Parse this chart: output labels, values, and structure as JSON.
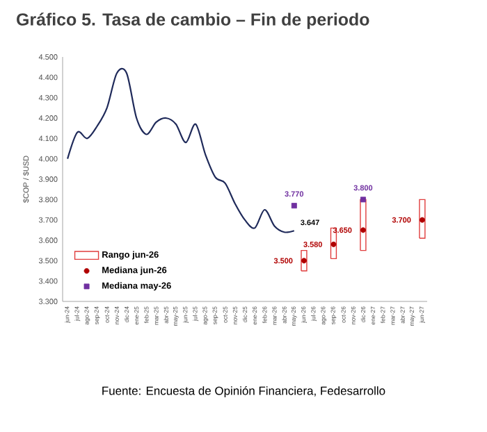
{
  "chart_data": {
    "type": "line",
    "title": "Gráfico 5. Tasa de cambio – Fin de periodo",
    "ylabel": "$COP / $USD",
    "categories": [
      "jun-24",
      "jul-24",
      "ago-24",
      "sep-24",
      "oct-24",
      "nov-24",
      "dic-24",
      "ene-25",
      "feb-25",
      "mar-25",
      "abr-25",
      "may-25",
      "jun-25",
      "jul-25",
      "ago-25",
      "sep-25",
      "oct-25",
      "nov-25",
      "dic-25",
      "ene-26",
      "feb-26",
      "mar-26",
      "abr-26",
      "may-26",
      "jun-26",
      "jul-26",
      "ago-26",
      "sep-26",
      "oct-26",
      "nov-26",
      "dic-26",
      "ene-27",
      "feb-27",
      "mar-27",
      "abr-27",
      "may-27",
      "jun-27"
    ],
    "ylim": [
      3300,
      4500
    ],
    "yticks": [
      {
        "value": 3300,
        "label": "3.300"
      },
      {
        "value": 3400,
        "label": "3.400"
      },
      {
        "value": 3500,
        "label": "3.500"
      },
      {
        "value": 3600,
        "label": "3.600"
      },
      {
        "value": 3700,
        "label": "3.700"
      },
      {
        "value": 3800,
        "label": "3.800"
      },
      {
        "value": 3900,
        "label": "3.900"
      },
      {
        "value": 4000,
        "label": "4.000"
      },
      {
        "value": 4100,
        "label": "4.100"
      },
      {
        "value": 4200,
        "label": "4.200"
      },
      {
        "value": 4300,
        "label": "4.300"
      },
      {
        "value": 4400,
        "label": "4.400"
      },
      {
        "value": 4500,
        "label": "4.500"
      }
    ],
    "grid": false,
    "legend": "bottom left",
    "series": [
      {
        "color": "#1f2a5a",
        "values": [
          4000,
          4130,
          4100,
          4160,
          4250,
          4420,
          4420,
          4200,
          4120,
          4180,
          4200,
          4170,
          4080,
          4170,
          4020,
          3910,
          3880,
          3780,
          3700,
          3660,
          3750,
          3670,
          3640,
          3647,
          null,
          null,
          null,
          null,
          null,
          null,
          null,
          null,
          null,
          null,
          null,
          null,
          null
        ],
        "value_labels": [
          null,
          null,
          null,
          null,
          null,
          null,
          null,
          null,
          null,
          null,
          null,
          null,
          null,
          null,
          null,
          null,
          null,
          null,
          null,
          null,
          null,
          null,
          null,
          "3.647",
          null,
          null,
          null,
          null,
          null,
          null,
          null,
          null,
          null,
          null,
          null,
          null,
          null
        ]
      },
      {
        "type": "bar",
        "name": "Rango jun-26",
        "color": "#e03c3c",
        "base": [
          null,
          null,
          null,
          null,
          null,
          null,
          null,
          null,
          null,
          null,
          null,
          null,
          null,
          null,
          null,
          null,
          null,
          null,
          null,
          null,
          null,
          null,
          null,
          null,
          3450,
          null,
          null,
          3510,
          null,
          null,
          3550,
          null,
          null,
          null,
          null,
          null,
          3610
        ],
        "values": [
          null,
          null,
          null,
          null,
          null,
          null,
          null,
          null,
          null,
          null,
          null,
          null,
          null,
          null,
          null,
          null,
          null,
          null,
          null,
          null,
          null,
          null,
          null,
          null,
          100,
          null,
          null,
          150,
          null,
          null,
          250,
          null,
          null,
          null,
          null,
          null,
          190
        ]
      },
      {
        "type": "scatter",
        "name": "Mediana jun-26",
        "color": "#b00000",
        "marker": "circle",
        "values": [
          null,
          null,
          null,
          null,
          null,
          null,
          null,
          null,
          null,
          null,
          null,
          null,
          null,
          null,
          null,
          null,
          null,
          null,
          null,
          null,
          null,
          null,
          null,
          null,
          3500,
          null,
          null,
          3580,
          null,
          null,
          3650,
          null,
          null,
          null,
          null,
          null,
          3700
        ],
        "value_labels": [
          null,
          null,
          null,
          null,
          null,
          null,
          null,
          null,
          null,
          null,
          null,
          null,
          null,
          null,
          null,
          null,
          null,
          null,
          null,
          null,
          null,
          null,
          null,
          null,
          "3.500",
          null,
          null,
          "3.580",
          null,
          null,
          "3.650",
          null,
          null,
          null,
          null,
          null,
          "3.700"
        ]
      },
      {
        "type": "scatter",
        "name": "Mediana may-26",
        "color": "#7030a0",
        "marker": "square",
        "values": [
          null,
          null,
          null,
          null,
          null,
          null,
          null,
          null,
          null,
          null,
          null,
          null,
          null,
          null,
          null,
          null,
          null,
          null,
          null,
          null,
          null,
          null,
          null,
          3770,
          null,
          null,
          null,
          null,
          null,
          null,
          3800,
          null,
          null,
          null,
          null,
          null,
          null
        ],
        "value_labels": [
          null,
          null,
          null,
          null,
          null,
          null,
          null,
          null,
          null,
          null,
          null,
          null,
          null,
          null,
          null,
          null,
          null,
          null,
          null,
          null,
          null,
          null,
          null,
          "3.770",
          null,
          null,
          null,
          null,
          null,
          null,
          "3.800",
          null,
          null,
          null,
          null,
          null,
          null
        ]
      }
    ],
    "annotations": [
      "Fuente: Encuesta de Opinión Financiera, Fedesarrollo"
    ]
  }
}
